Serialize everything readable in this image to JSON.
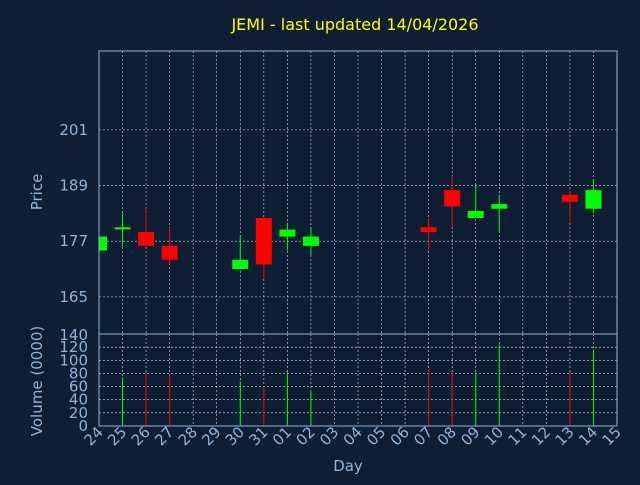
{
  "colors": {
    "background": "#0f1f33",
    "title": "#ffff00",
    "axis_text": "#8fb3d9",
    "up": "#00ff00",
    "down": "#ff0000",
    "grid": "#ffffff"
  },
  "chart_data": {
    "type": "candlestick",
    "title": "JEMI - last updated 14/04/2026",
    "xlabel": "Day",
    "price_panel": {
      "ylabel": "Price",
      "yticks": [
        165,
        177,
        189,
        201
      ],
      "ylim": [
        157,
        218
      ]
    },
    "volume_panel": {
      "ylabel": "Volume (0000)",
      "yticks": [
        0,
        20,
        40,
        60,
        80,
        100,
        120
      ],
      "ylim": [
        0,
        140
      ],
      "top_label": "140"
    },
    "days": [
      "24",
      "25",
      "26",
      "27",
      "28",
      "29",
      "30",
      "31",
      "01",
      "02",
      "03",
      "04",
      "05",
      "06",
      "07",
      "08",
      "09",
      "10",
      "11",
      "12",
      "13",
      "14",
      "15"
    ],
    "candles": [
      {
        "day": "24",
        "open": 175,
        "close": 178,
        "high": 178,
        "low": 175,
        "volume": 0
      },
      {
        "day": "25",
        "open": 180,
        "close": 180,
        "high": 183,
        "low": 176,
        "volume": 74
      },
      {
        "day": "26",
        "open": 179,
        "close": 176,
        "high": 184,
        "low": 176,
        "volume": 82
      },
      {
        "day": "27",
        "open": 176,
        "close": 173,
        "high": 180,
        "low": 172,
        "volume": 78
      },
      {
        "day": "30",
        "open": 171,
        "close": 173,
        "high": 178,
        "low": 171,
        "volume": 68
      },
      {
        "day": "31",
        "open": 182,
        "close": 172,
        "high": 182,
        "low": 169,
        "volume": 60
      },
      {
        "day": "01",
        "open": 178,
        "close": 179.5,
        "high": 181,
        "low": 175,
        "volume": 84
      },
      {
        "day": "02",
        "open": 176,
        "close": 178,
        "high": 180,
        "low": 174,
        "volume": 52
      },
      {
        "day": "07",
        "open": 180,
        "close": 179,
        "high": 182,
        "low": 175,
        "volume": 86
      },
      {
        "day": "08",
        "open": 188,
        "close": 184.5,
        "high": 191,
        "low": 180,
        "volume": 82
      },
      {
        "day": "09",
        "open": 182,
        "close": 183.5,
        "high": 189,
        "low": 182,
        "volume": 82
      },
      {
        "day": "10",
        "open": 184,
        "close": 185,
        "high": 187,
        "low": 179,
        "volume": 124
      },
      {
        "day": "13",
        "open": 187,
        "close": 185.5,
        "high": 188,
        "low": 181,
        "volume": 82
      },
      {
        "day": "14",
        "open": 184,
        "close": 188,
        "high": 190,
        "low": 183,
        "volume": 116
      }
    ]
  }
}
